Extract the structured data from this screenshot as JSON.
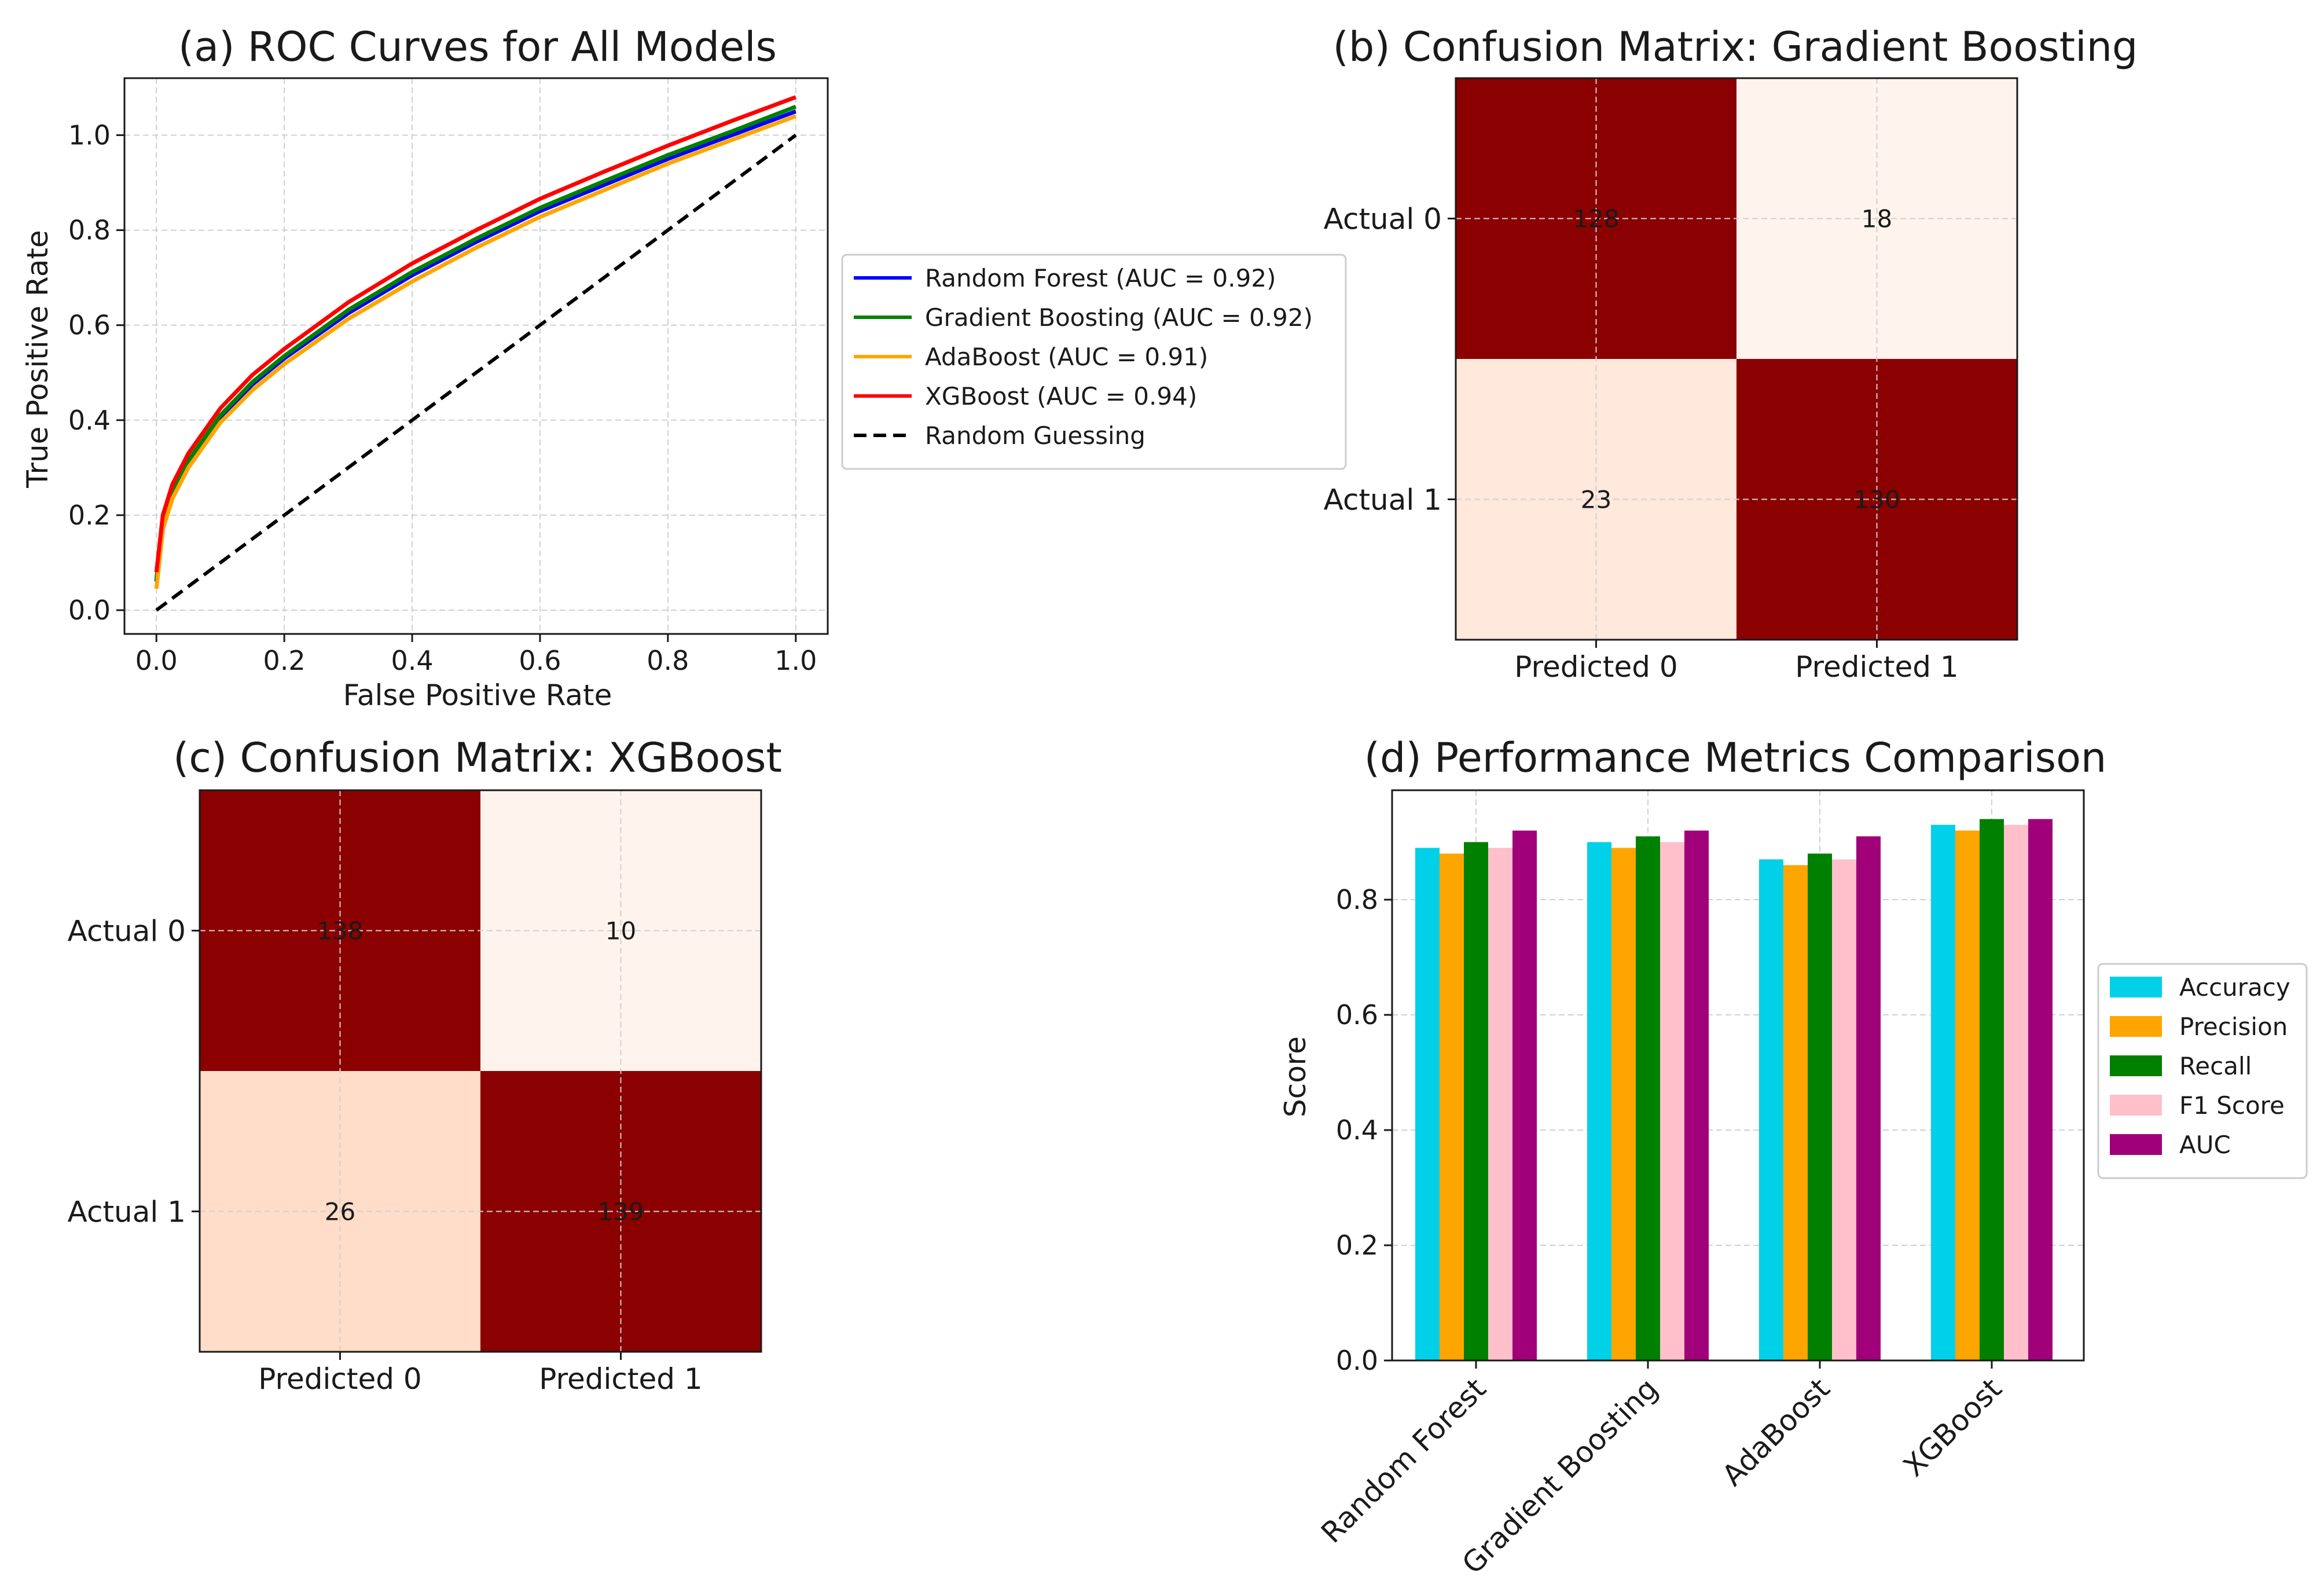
{
  "chart_data": [
    {
      "type": "line",
      "title": "(a) ROC Curves for All Models",
      "xlabel": "False Positive Rate",
      "ylabel": "True Positive Rate",
      "xlim": [
        -0.05,
        1.05
      ],
      "ylim": [
        -0.05,
        1.12
      ],
      "xticks": [
        "0.0",
        "0.2",
        "0.4",
        "0.6",
        "0.8",
        "1.0"
      ],
      "yticks": [
        "0.0",
        "0.2",
        "0.4",
        "0.6",
        "0.8",
        "1.0"
      ],
      "grid": true,
      "legend_position": "outside right",
      "x": [
        0.0,
        0.01,
        0.025,
        0.05,
        0.1,
        0.15,
        0.2,
        0.3,
        0.4,
        0.5,
        0.6,
        0.7,
        0.8,
        0.9,
        1.0
      ],
      "series": [
        {
          "name": "Random Forest (AUC = 0.92)",
          "color": "#0000ff",
          "style": "solid",
          "values": [
            0.06,
            0.18,
            0.245,
            0.31,
            0.405,
            0.475,
            0.53,
            0.625,
            0.705,
            0.775,
            0.84,
            0.895,
            0.95,
            1.0,
            1.05
          ]
        },
        {
          "name": "Gradient Boosting (AUC = 0.92)",
          "color": "#008000",
          "style": "solid",
          "values": [
            0.065,
            0.185,
            0.25,
            0.315,
            0.41,
            0.48,
            0.535,
            0.632,
            0.712,
            0.782,
            0.847,
            0.903,
            0.958,
            1.008,
            1.06
          ]
        },
        {
          "name": "AdaBoost (AUC = 0.91)",
          "color": "#ffa500",
          "style": "solid",
          "values": [
            0.045,
            0.17,
            0.235,
            0.3,
            0.395,
            0.463,
            0.518,
            0.613,
            0.692,
            0.763,
            0.828,
            0.884,
            0.94,
            0.99,
            1.04
          ]
        },
        {
          "name": "XGBoost (AUC = 0.94)",
          "color": "#ff0000",
          "style": "solid",
          "values": [
            0.08,
            0.2,
            0.265,
            0.33,
            0.425,
            0.495,
            0.55,
            0.648,
            0.73,
            0.8,
            0.866,
            0.923,
            0.978,
            1.03,
            1.08
          ]
        },
        {
          "name": "Random Guessing",
          "color": "#000000",
          "style": "dashed",
          "values": [
            0.0,
            0.01,
            0.025,
            0.05,
            0.1,
            0.15,
            0.2,
            0.3,
            0.4,
            0.5,
            0.6,
            0.7,
            0.8,
            0.9,
            1.0
          ]
        }
      ]
    },
    {
      "type": "heatmap",
      "title": "(b) Confusion Matrix: Gradient Boosting",
      "columns": [
        "Predicted 0",
        "Predicted 1"
      ],
      "rows": [
        "Actual 0",
        "Actual 1"
      ],
      "values": [
        [
          128,
          18
        ],
        [
          23,
          130
        ]
      ],
      "colors": [
        [
          "#8b0000",
          "#fff4ed"
        ],
        [
          "#ffe8dc",
          "#8b0000"
        ]
      ]
    },
    {
      "type": "heatmap",
      "title": "(c) Confusion Matrix: XGBoost",
      "columns": [
        "Predicted 0",
        "Predicted 1"
      ],
      "rows": [
        "Actual 0",
        "Actual 1"
      ],
      "values": [
        [
          138,
          10
        ],
        [
          26,
          139
        ]
      ],
      "colors": [
        [
          "#8b0000",
          "#fff4ed"
        ],
        [
          "#ffddc9",
          "#8b0000"
        ]
      ]
    },
    {
      "type": "bar",
      "title": "(d) Performance Metrics Comparison",
      "xlabel": "",
      "ylabel": "Score",
      "ylim": [
        0,
        0.99
      ],
      "yticks": [
        "0.0",
        "0.2",
        "0.4",
        "0.6",
        "0.8"
      ],
      "grid": true,
      "legend_position": "outside right",
      "categories": [
        "Random Forest",
        "Gradient Boosting",
        "AdaBoost",
        "XGBoost"
      ],
      "series": [
        {
          "name": "Accuracy",
          "color": "#00d0e8",
          "values": [
            0.89,
            0.9,
            0.87,
            0.93
          ]
        },
        {
          "name": "Precision",
          "color": "#ffa500",
          "values": [
            0.88,
            0.89,
            0.86,
            0.92
          ]
        },
        {
          "name": "Recall",
          "color": "#008000",
          "values": [
            0.9,
            0.91,
            0.88,
            0.94
          ]
        },
        {
          "name": "F1 Score",
          "color": "#ffc0cb",
          "values": [
            0.89,
            0.9,
            0.87,
            0.93
          ]
        },
        {
          "name": "AUC",
          "color": "#a0007a",
          "values": [
            0.92,
            0.92,
            0.91,
            0.94
          ]
        }
      ]
    }
  ]
}
